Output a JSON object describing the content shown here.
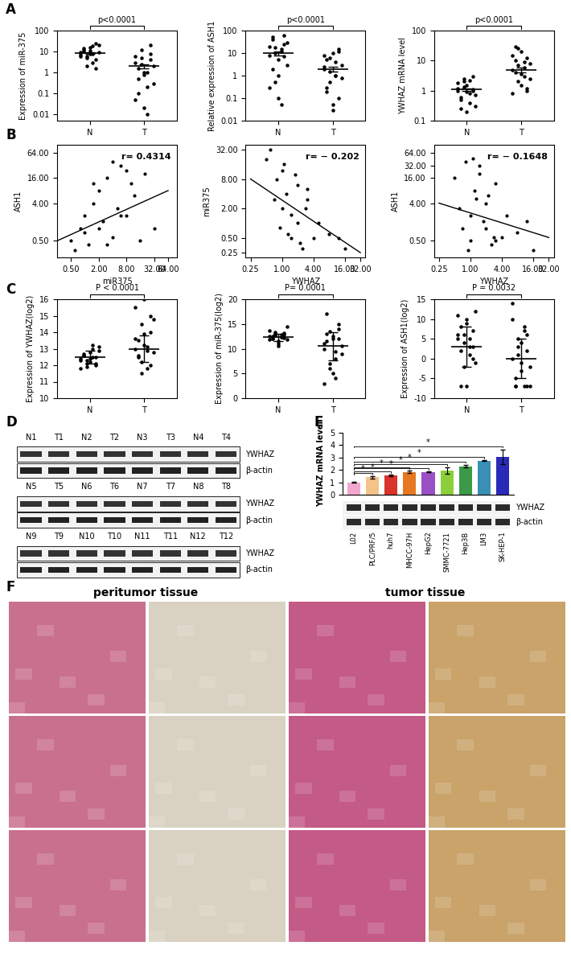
{
  "panel_labels": [
    "A",
    "B",
    "C",
    "D",
    "E",
    "F"
  ],
  "chart_data": [
    {
      "type": "dotplot",
      "categories": [
        "N",
        "T"
      ],
      "ylabel": "Expression of miR-375",
      "annotation": "p<0.0001",
      "log": "y",
      "color": "#000000",
      "values": [
        [
          9,
          12,
          6,
          15,
          8,
          4,
          20,
          7,
          10,
          5,
          11,
          3,
          25,
          9,
          6,
          14,
          2,
          8,
          18,
          1.5
        ],
        [
          3,
          0.5,
          5,
          1,
          0.2,
          8,
          2,
          0.05,
          1.5,
          12,
          0.8,
          0.01,
          4,
          0.3,
          6,
          0.1,
          2.5,
          0.02,
          1,
          20
        ]
      ],
      "mean": [
        8.5,
        2
      ],
      "error": [
        0.9,
        0.5
      ],
      "ylim": [
        0.005,
        100
      ],
      "yticks": [
        0.01,
        0.1,
        1,
        10,
        100
      ]
    },
    {
      "type": "dotplot",
      "categories": [
        "N",
        "T"
      ],
      "ylabel": "Relative expression of ASH1",
      "annotation": "p<0.0001",
      "log": "y",
      "color": "#000000",
      "values": [
        [
          20,
          40,
          10,
          5,
          15,
          60,
          30,
          8,
          2,
          0.5,
          0.1,
          12,
          25,
          3,
          0.3,
          50,
          18,
          1,
          0.05,
          7
        ],
        [
          2,
          5,
          0.5,
          10,
          1,
          0.1,
          3,
          8,
          0.3,
          1.5,
          0.05,
          4,
          12,
          0.8,
          2.5,
          0.2,
          6,
          0.03,
          1,
          15
        ]
      ],
      "mean": [
        10,
        2
      ],
      "error": [
        2,
        0.5
      ],
      "ylim": [
        0.01,
        100
      ],
      "yticks": [
        0.01,
        0.1,
        1,
        10,
        100
      ]
    },
    {
      "type": "dotplot",
      "categories": [
        "N",
        "T"
      ],
      "ylabel": "YWHAZ mRNA level",
      "annotation": "p<0.0001",
      "log": "y",
      "color": "#000000",
      "values": [
        [
          1,
          0.5,
          2,
          1.5,
          0.8,
          3,
          0.3,
          1.2,
          0.6,
          2.5,
          0.9,
          0.4,
          1.1,
          0.7,
          1.8,
          0.25,
          1.3,
          0.2,
          2.2,
          1
        ],
        [
          5,
          10,
          2,
          20,
          3,
          1,
          8,
          15,
          4,
          25,
          1.5,
          6,
          12,
          2.5,
          0.8,
          30,
          7,
          3.5,
          9,
          1.2
        ]
      ],
      "mean": [
        1.1,
        5
      ],
      "error": [
        0.1,
        1
      ],
      "ylim": [
        0.1,
        100
      ],
      "yticks": [
        0.1,
        1,
        10,
        100
      ]
    },
    {
      "type": "scatter",
      "xlabel": "miR375",
      "ylabel": "ASH1",
      "annotation": "r= 0.4314",
      "log": true,
      "color": "#000000",
      "x": [
        0.5,
        0.8,
        1,
        1.2,
        1.5,
        2,
        2.5,
        3,
        4,
        5,
        6,
        8,
        10,
        12,
        16,
        20,
        0.6,
        1,
        2,
        3,
        4,
        6,
        8,
        32,
        1.5
      ],
      "values": [
        0.5,
        1,
        2,
        0.4,
        4,
        8,
        1.5,
        16,
        0.6,
        3,
        32,
        2,
        12,
        6,
        0.5,
        20,
        0.3,
        0.8,
        1,
        0.4,
        40,
        2,
        24,
        1,
        12
      ],
      "trend_line": {
        "x": [
          0.25,
          64
        ],
        "values": [
          0.5,
          8
        ]
      },
      "xlim": [
        0.25,
        100
      ],
      "ylim": [
        0.2,
        100
      ],
      "xticks": [
        {
          "value": 0.5,
          "label": "0.50"
        },
        {
          "value": 2,
          "label": "2.00"
        },
        {
          "value": 8,
          "label": "8.00"
        },
        {
          "value": 32,
          "label": "32.00"
        },
        {
          "value": 64,
          "label": "64.00"
        }
      ],
      "yticks": [
        {
          "value": 0.5,
          "label": "0.50"
        },
        {
          "value": 4,
          "label": "4.00"
        },
        {
          "value": 16,
          "label": "16.00"
        },
        {
          "value": 64,
          "label": "64.00"
        }
      ]
    },
    {
      "type": "scatter",
      "xlabel": "YWHAZ",
      "ylabel": "miR375",
      "annotation": "r= − 0.202",
      "log": true,
      "color": "#000000",
      "x": [
        0.5,
        0.8,
        1,
        1,
        1.2,
        1.5,
        2,
        2,
        2.5,
        3,
        4,
        0.6,
        0.9,
        1.5,
        1.8,
        2.2,
        3,
        5,
        8,
        16,
        1.1,
        0.7,
        1.3,
        2.8,
        12
      ],
      "values": [
        20,
        8,
        12,
        2,
        4,
        0.5,
        6,
        1,
        0.3,
        3,
        0.5,
        32,
        0.8,
        1.5,
        10,
        0.4,
        5,
        1,
        0.6,
        0.3,
        16,
        3,
        0.6,
        2,
        0.5
      ],
      "trend_line": {
        "x": [
          0.25,
          32
        ],
        "values": [
          8,
          0.25
        ]
      },
      "xlim": [
        0.2,
        40
      ],
      "ylim": [
        0.2,
        40
      ],
      "xticks": [
        {
          "value": 0.25,
          "label": "0.25"
        },
        {
          "value": 1,
          "label": "1.00"
        },
        {
          "value": 4,
          "label": "4.00"
        },
        {
          "value": 16,
          "label": "16.00"
        },
        {
          "value": 32,
          "label": "32.00"
        }
      ],
      "yticks": [
        {
          "value": 0.25,
          "label": "0.25"
        },
        {
          "value": 0.5,
          "label": "0.50"
        },
        {
          "value": 2,
          "label": "2.00"
        },
        {
          "value": 8,
          "label": "8.00"
        },
        {
          "value": 32,
          "label": "32.00"
        }
      ]
    },
    {
      "type": "scatter",
      "xlabel": "YWHAZ",
      "ylabel": "ASH1",
      "annotation": "r= − 0.1648",
      "log": true,
      "color": "#000000",
      "x": [
        0.5,
        0.8,
        1,
        1,
        1.2,
        1.5,
        2,
        2,
        2.5,
        3,
        4,
        0.6,
        0.9,
        1.5,
        1.8,
        2.2,
        3,
        5,
        8,
        16,
        1.1,
        0.7,
        1.3,
        2.8,
        12
      ],
      "values": [
        16,
        40,
        2,
        0.5,
        8,
        32,
        1,
        4,
        0.4,
        12,
        0.6,
        3,
        0.3,
        20,
        1.5,
        6,
        0.5,
        2,
        0.8,
        0.3,
        48,
        1,
        5,
        0.6,
        1.5
      ],
      "trend_line": {
        "x": [
          0.25,
          32
        ],
        "values": [
          4,
          0.6
        ]
      },
      "xlim": [
        0.2,
        40
      ],
      "ylim": [
        0.2,
        100
      ],
      "xticks": [
        {
          "value": 0.25,
          "label": "0.25"
        },
        {
          "value": 1,
          "label": "1.00"
        },
        {
          "value": 4,
          "label": "4.00"
        },
        {
          "value": 16,
          "label": "16.00"
        },
        {
          "value": 32,
          "label": "32.00"
        }
      ],
      "yticks": [
        {
          "value": 0.5,
          "label": "0.50"
        },
        {
          "value": 4,
          "label": "4.00"
        },
        {
          "value": 16,
          "label": "16.00"
        },
        {
          "value": 32,
          "label": "32.00"
        },
        {
          "value": 64,
          "label": "64.00"
        }
      ]
    },
    {
      "type": "dotplot",
      "categories": [
        "N",
        "T"
      ],
      "ylabel": "Expression of YWHAZ(log2)",
      "annotation": "P < 0.0001",
      "color": "#000000",
      "values": [
        [
          12.3,
          12.6,
          12.1,
          12.8,
          12.5,
          12.0,
          13.1,
          12.4,
          12.7,
          11.9,
          12.2,
          13.2,
          12.5,
          12.9,
          11.8,
          12.6,
          12.3,
          12.4,
          13.0,
          12.1
        ],
        [
          13.0,
          12.5,
          14.5,
          13.2,
          11.8,
          14.0,
          12.8,
          15.5,
          13.5,
          12.2,
          16.0,
          13.1,
          12.0,
          14.8,
          13.6,
          12.6,
          11.5,
          13.9,
          12.9,
          15.0
        ]
      ],
      "mean": [
        12.5,
        13.0
      ],
      "error": [
        0.4,
        0.8
      ],
      "ylim": [
        10,
        16
      ],
      "yticks": [
        10,
        11,
        12,
        13,
        14,
        15,
        16
      ]
    },
    {
      "type": "dotplot",
      "categories": [
        "N",
        "T"
      ],
      "ylabel": "Expression of miR-375(log2)",
      "annotation": "P= 0.0001",
      "color": "#000000",
      "values": [
        [
          12.5,
          12.0,
          13.0,
          11.5,
          12.8,
          12.2,
          14.5,
          11.8,
          12.6,
          13.3,
          10.5,
          12.4,
          12.9,
          11.9,
          13.6,
          12.1,
          12.7,
          11.0,
          12.3,
          13.1
        ],
        [
          10,
          13,
          7,
          12,
          4,
          15,
          9,
          11,
          17,
          6,
          12.5,
          8,
          14,
          10.5,
          3,
          11.5,
          13.5,
          5,
          9.5,
          12
        ]
      ],
      "mean": [
        12.3,
        10.5
      ],
      "error": [
        0.7,
        2.8
      ],
      "ylim": [
        0,
        20
      ],
      "yticks": [
        0,
        5,
        10,
        15,
        20
      ]
    },
    {
      "type": "dotplot",
      "categories": [
        "N",
        "T"
      ],
      "ylabel": "Expression of ASH1(log2)",
      "annotation": "P = 0.0032",
      "color": "#000000",
      "values": [
        [
          5,
          8,
          -2,
          10,
          3,
          0,
          12,
          6,
          -7,
          4,
          9,
          1,
          7,
          -1,
          11,
          2,
          6,
          -7,
          5,
          3
        ],
        [
          0,
          -7,
          5,
          -3,
          8,
          2,
          -7,
          10,
          -5,
          1,
          4,
          -7,
          6,
          -2,
          14,
          -7,
          3,
          -1,
          7,
          -7
        ]
      ],
      "mean": [
        3,
        0
      ],
      "error": [
        5,
        5
      ],
      "ylim": [
        -10,
        15
      ],
      "yticks": [
        -10,
        -5,
        0,
        5,
        10,
        15
      ]
    },
    {
      "type": "bar",
      "ylabel": "YWHAZ mRNA level",
      "tick_labels": "y",
      "categories": [
        "L02",
        "PLC/PRF/5",
        "huh7",
        "MHCC-97H",
        "HepG2",
        "SMMC-7721",
        "Hep3B",
        "LM3",
        "SK-HEP-1"
      ],
      "values": [
        1.0,
        1.4,
        1.55,
        1.85,
        1.85,
        1.95,
        2.3,
        2.75,
        3.05
      ],
      "error": [
        0.03,
        0.1,
        0.08,
        0.1,
        0.03,
        0.25,
        0.12,
        0.05,
        0.6
      ],
      "significance": [
        null,
        "*",
        "*",
        "*",
        "*",
        "*",
        "*",
        "*",
        "*"
      ],
      "colors": [
        "#f2a7cf",
        "#f5c28a",
        "#d9342b",
        "#e87722",
        "#9b4fc4",
        "#8ccf3c",
        "#3a9a48",
        "#3a8fb5",
        "#2a2ab8"
      ],
      "ylim": [
        0,
        5
      ],
      "yticks": [
        0,
        1,
        2,
        3,
        4,
        5
      ],
      "blot_labels": [
        "YWHAZ",
        "β-actin"
      ]
    }
  ],
  "blots": {
    "strips": [
      [
        "N1",
        "T1",
        "N2",
        "T2",
        "N3",
        "T3",
        "N4",
        "T4"
      ],
      [
        "N5",
        "T5",
        "N6",
        "T6",
        "N7",
        "T7",
        "N8",
        "T8"
      ],
      [
        "N9",
        "T9",
        "N10",
        "T10",
        "N11",
        "T11",
        "N12",
        "T12"
      ]
    ],
    "proteins": [
      "YWHAZ",
      "β-actin"
    ]
  },
  "histology": {
    "headers": [
      "peritumor tissue",
      "tumor tissue"
    ]
  }
}
